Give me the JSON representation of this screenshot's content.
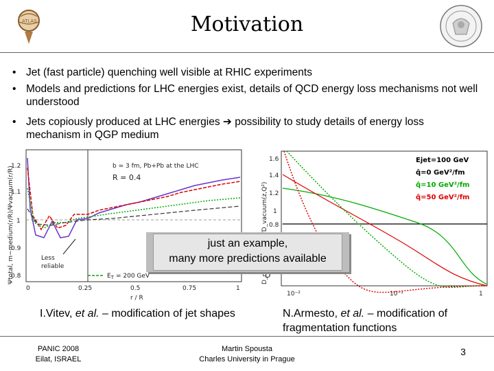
{
  "slide": {
    "title": "Motivation",
    "bullets": [
      "Jet (fast particle) quenching well visible at RHIC experiments",
      "Models and predictions for LHC energies exist, details of QCD energy loss mechanisms not well understood",
      "Jets copiously produced at LHC energies ➔ possibility to study details of energy loss mechanism in QGP medium"
    ],
    "callout": {
      "line1": "just an example,",
      "line2": "many more predictions available"
    },
    "caption_left": {
      "prefix": "I.Vitev, ",
      "italic": "et al.",
      "suffix": " – modification of jet shapes"
    },
    "caption_right": {
      "prefix": "N.Armesto, ",
      "italic": "et al.",
      "suffix": " – modification of fragmentation functions"
    },
    "footer": {
      "left_line1": "PANIC 2008",
      "left_line2": "Eilat, ISRAEL",
      "center_line1": "Martin Spousta",
      "center_line2": "Charles University in Prague",
      "page_number": "3"
    }
  },
  "left_plot": {
    "y_label": "Ψtotal, m−medium(r/R)/Ψvacuum(r/R)",
    "x_label": "r / R",
    "x_ticks": [
      "0",
      "0.25",
      "0.5",
      "0.75",
      "1"
    ],
    "y_ticks": [
      "1.2",
      "1.1",
      "1",
      "0.9",
      "0.8"
    ],
    "info_line1": "b = 3 fm, Pb+Pb at the LHC",
    "info_line2": "R = 0.4",
    "annotation_less": "Less",
    "annotation_reliable": "reliable",
    "legend_fragment": "E",
    "legend_sub": "T",
    "legend_value": "= 200 GeV"
  },
  "right_plot": {
    "y_label": "D_medium(z,Q²)/D_vacuum(z,Q²)",
    "y_label_letter": "D",
    "x_ticks": [
      "10⁻²",
      "10⁻¹",
      "1"
    ],
    "y_ticks": [
      "1.6",
      "1.4",
      "1.2",
      "1",
      "0.8"
    ],
    "legend": [
      {
        "label": "Ejet=100 GeV",
        "color": "#000000"
      },
      {
        "label": "q̂=0 GeV²/fm",
        "color": "#000000"
      },
      {
        "label": "q̂=10 GeV²/fm",
        "color": "#00aa00"
      },
      {
        "label": "q̂=50 GeV²/fm",
        "color": "#dd0000"
      }
    ]
  },
  "colors": {
    "rule": "#666666",
    "green": "#00aa00",
    "red": "#dd0000",
    "purple": "#6633cc"
  }
}
